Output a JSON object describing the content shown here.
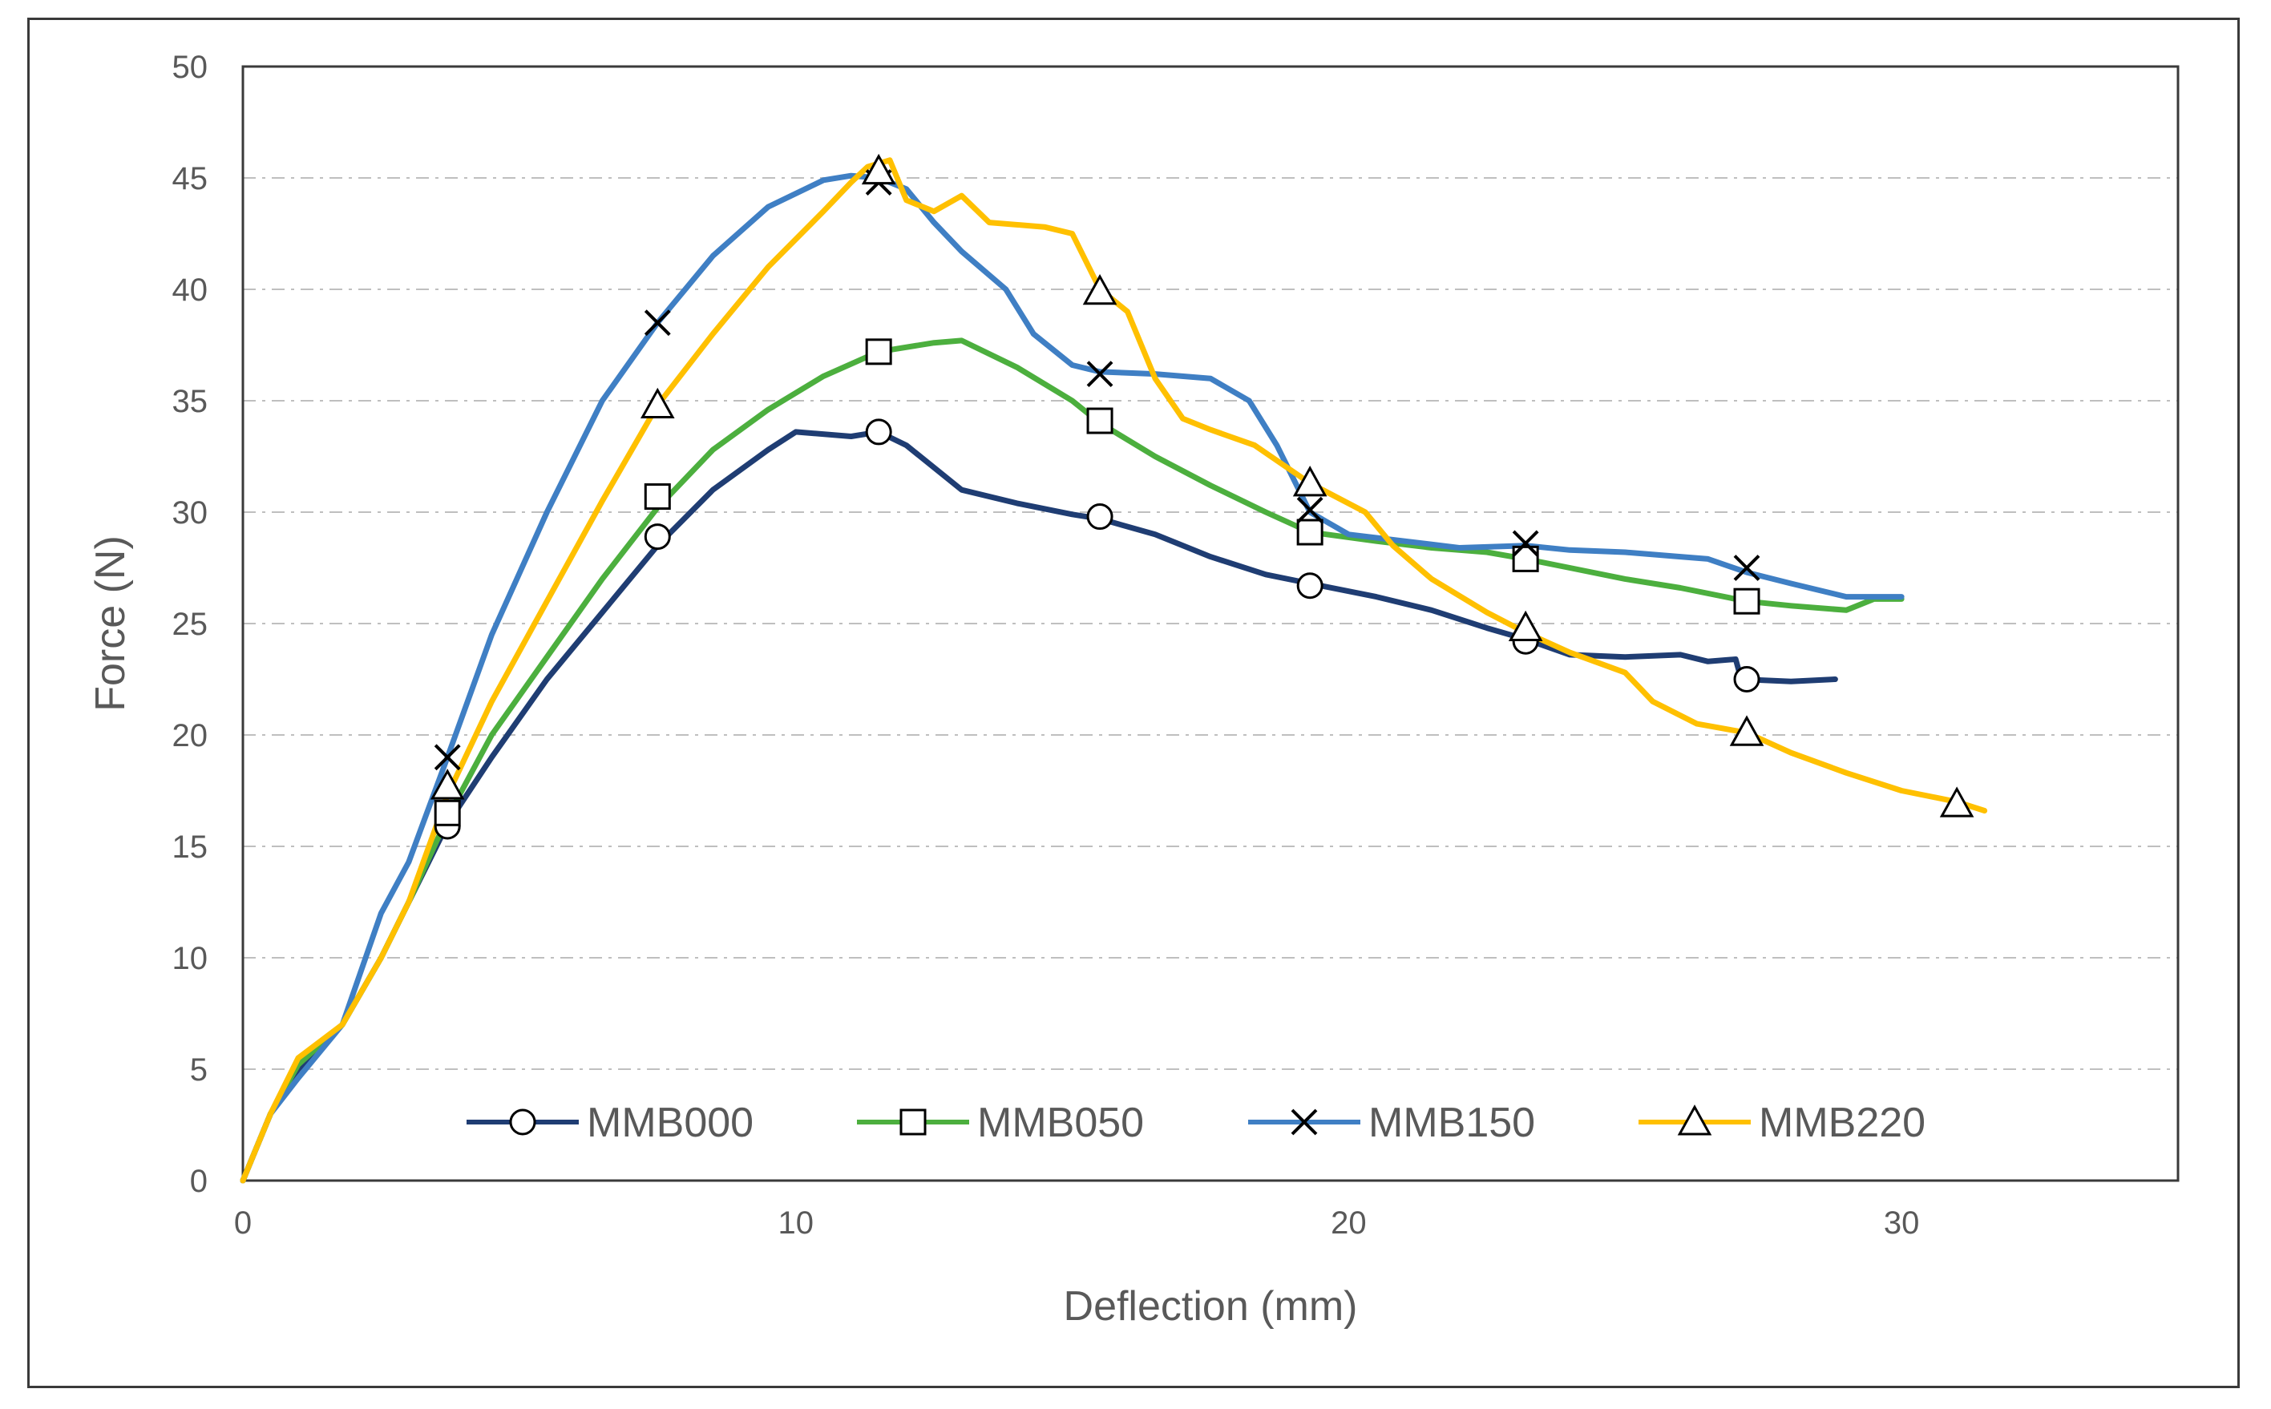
{
  "chart_data": {
    "type": "line",
    "title": "",
    "xlabel": "Deflection (mm)",
    "ylabel": "Force (N)",
    "xlim": [
      0,
      35
    ],
    "ylim": [
      0,
      50
    ],
    "x_ticks": [
      "0",
      "10",
      "20",
      "30"
    ],
    "y_ticks": [
      "0",
      "5",
      "10",
      "15",
      "20",
      "25",
      "30",
      "35",
      "40",
      "45",
      "50"
    ],
    "grid": "horizontal dashed",
    "legend_position": "bottom-inside",
    "series": [
      {
        "name": "MMB000",
        "color": "#1f3d73",
        "marker": "circle",
        "points": [
          [
            0,
            0
          ],
          [
            0.5,
            3
          ],
          [
            1,
            5
          ],
          [
            1.8,
            7
          ],
          [
            2.5,
            10
          ],
          [
            3,
            12.5
          ],
          [
            3.7,
            16
          ],
          [
            4.5,
            19
          ],
          [
            5.5,
            22.5
          ],
          [
            6.5,
            25.5
          ],
          [
            7.5,
            28.5
          ],
          [
            8.5,
            31
          ],
          [
            9.5,
            32.8
          ],
          [
            10,
            33.6
          ],
          [
            11,
            33.4
          ],
          [
            11.5,
            33.6
          ],
          [
            12,
            33
          ],
          [
            13,
            31
          ],
          [
            14,
            30.4
          ],
          [
            15,
            29.9
          ],
          [
            15.5,
            29.7
          ],
          [
            16.5,
            29
          ],
          [
            17.5,
            28
          ],
          [
            18.5,
            27.2
          ],
          [
            19.3,
            26.8
          ],
          [
            20.5,
            26.2
          ],
          [
            21.5,
            25.6
          ],
          [
            22.5,
            24.8
          ],
          [
            23.2,
            24.3
          ],
          [
            24,
            23.6
          ],
          [
            25,
            23.5
          ],
          [
            26,
            23.6
          ],
          [
            26.5,
            23.3
          ],
          [
            27,
            23.4
          ],
          [
            27.1,
            22.5
          ],
          [
            28,
            22.4
          ],
          [
            28.8,
            22.5
          ]
        ],
        "marker_points": [
          [
            3.7,
            15.9
          ],
          [
            7.5,
            28.9
          ],
          [
            11.5,
            33.6
          ],
          [
            15.5,
            29.8
          ],
          [
            19.3,
            26.7
          ],
          [
            23.2,
            24.2
          ],
          [
            27.2,
            22.5
          ]
        ]
      },
      {
        "name": "MMB050",
        "color": "#4caf3e",
        "marker": "square",
        "points": [
          [
            0,
            0
          ],
          [
            0.5,
            3
          ],
          [
            1,
            5.2
          ],
          [
            1.8,
            7
          ],
          [
            2.5,
            10
          ],
          [
            3,
            12.5
          ],
          [
            3.7,
            16.3
          ],
          [
            4.5,
            20
          ],
          [
            5.5,
            23.5
          ],
          [
            6.5,
            27
          ],
          [
            7.5,
            30.2
          ],
          [
            8.5,
            32.8
          ],
          [
            9.5,
            34.6
          ],
          [
            10.5,
            36.1
          ],
          [
            11.5,
            37.2
          ],
          [
            12.5,
            37.6
          ],
          [
            13,
            37.7
          ],
          [
            14,
            36.5
          ],
          [
            15,
            35
          ],
          [
            15.5,
            34
          ],
          [
            16.5,
            32.5
          ],
          [
            17.5,
            31.2
          ],
          [
            18.5,
            30
          ],
          [
            19.3,
            29.1
          ],
          [
            20.5,
            28.7
          ],
          [
            21.5,
            28.4
          ],
          [
            22.5,
            28.2
          ],
          [
            23.2,
            27.9
          ],
          [
            24,
            27.5
          ],
          [
            25,
            27
          ],
          [
            26,
            26.6
          ],
          [
            27.2,
            26
          ],
          [
            28,
            25.8
          ],
          [
            29,
            25.6
          ],
          [
            29.5,
            26.1
          ],
          [
            30,
            26.1
          ]
        ],
        "marker_points": [
          [
            3.7,
            16.5
          ],
          [
            7.5,
            30.7
          ],
          [
            11.5,
            37.2
          ],
          [
            15.5,
            34.1
          ],
          [
            19.3,
            29.1
          ],
          [
            23.2,
            27.9
          ],
          [
            27.2,
            26
          ]
        ]
      },
      {
        "name": "MMB150",
        "color": "#3f7fc4",
        "marker": "x",
        "points": [
          [
            0,
            0
          ],
          [
            0.5,
            3
          ],
          [
            1,
            4.6
          ],
          [
            1.8,
            7
          ],
          [
            2.5,
            12
          ],
          [
            3,
            14.3
          ],
          [
            3.7,
            19
          ],
          [
            4.5,
            24.5
          ],
          [
            5.5,
            30
          ],
          [
            6.5,
            35
          ],
          [
            7.5,
            38.5
          ],
          [
            8.5,
            41.5
          ],
          [
            9.5,
            43.7
          ],
          [
            10.5,
            44.9
          ],
          [
            11,
            45.1
          ],
          [
            11.5,
            45
          ],
          [
            12,
            44.5
          ],
          [
            12.5,
            43
          ],
          [
            13,
            41.7
          ],
          [
            13.8,
            40
          ],
          [
            14.3,
            38
          ],
          [
            15,
            36.6
          ],
          [
            15.5,
            36.3
          ],
          [
            16.5,
            36.2
          ],
          [
            17.5,
            36
          ],
          [
            18.2,
            35
          ],
          [
            18.7,
            33
          ],
          [
            19.3,
            30
          ],
          [
            20,
            29
          ],
          [
            21,
            28.7
          ],
          [
            22,
            28.4
          ],
          [
            23.2,
            28.5
          ],
          [
            24,
            28.3
          ],
          [
            25,
            28.2
          ],
          [
            26,
            28
          ],
          [
            26.5,
            27.9
          ],
          [
            27.2,
            27.3
          ],
          [
            28,
            26.8
          ],
          [
            29,
            26.2
          ],
          [
            30,
            26.2
          ]
        ],
        "marker_points": [
          [
            3.7,
            19
          ],
          [
            7.5,
            38.5
          ],
          [
            11.5,
            44.8
          ],
          [
            15.5,
            36.2
          ],
          [
            19.3,
            30.1
          ],
          [
            23.2,
            28.6
          ],
          [
            27.2,
            27.5
          ]
        ]
      },
      {
        "name": "MMB220",
        "color": "#ffc000",
        "marker": "triangle",
        "points": [
          [
            0,
            0
          ],
          [
            0.5,
            3
          ],
          [
            1,
            5.5
          ],
          [
            1.8,
            7
          ],
          [
            2.5,
            10
          ],
          [
            3,
            12.5
          ],
          [
            3.7,
            17.3
          ],
          [
            4.5,
            21.5
          ],
          [
            5.5,
            26
          ],
          [
            6.5,
            30.5
          ],
          [
            7.5,
            34.8
          ],
          [
            8.5,
            38
          ],
          [
            9.5,
            41
          ],
          [
            10.5,
            43.5
          ],
          [
            11,
            44.8
          ],
          [
            11.3,
            45.5
          ],
          [
            11.7,
            45.8
          ],
          [
            12,
            44
          ],
          [
            12.5,
            43.5
          ],
          [
            13,
            44.2
          ],
          [
            13.5,
            43
          ],
          [
            14.5,
            42.8
          ],
          [
            15,
            42.5
          ],
          [
            15.5,
            40
          ],
          [
            16,
            39
          ],
          [
            16.5,
            36
          ],
          [
            17,
            34.2
          ],
          [
            17.5,
            33.7
          ],
          [
            18.3,
            33
          ],
          [
            19.3,
            31.3
          ],
          [
            20.3,
            30
          ],
          [
            20.8,
            28.5
          ],
          [
            21.5,
            27
          ],
          [
            22.5,
            25.5
          ],
          [
            23.2,
            24.6
          ],
          [
            24,
            23.7
          ],
          [
            25,
            22.8
          ],
          [
            25.5,
            21.5
          ],
          [
            26.3,
            20.5
          ],
          [
            27.2,
            20.1
          ],
          [
            28,
            19.2
          ],
          [
            29,
            18.3
          ],
          [
            30,
            17.5
          ],
          [
            31,
            17
          ],
          [
            31.5,
            16.6
          ]
        ],
        "marker_points": [
          [
            3.7,
            17.7
          ],
          [
            7.5,
            34.8
          ],
          [
            11.5,
            45.3
          ],
          [
            15.5,
            39.9
          ],
          [
            19.3,
            31.3
          ],
          [
            23.2,
            24.8
          ],
          [
            27.2,
            20.1
          ],
          [
            31,
            16.9
          ]
        ]
      }
    ]
  }
}
